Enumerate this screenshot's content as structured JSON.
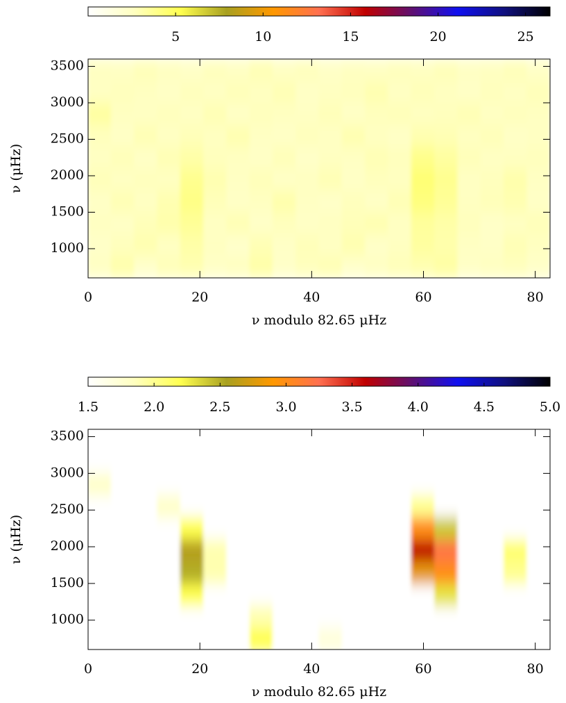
{
  "chart_data": [
    {
      "type": "heatmap",
      "xlabel": "ν modulo 82.65 μHz",
      "ylabel": "ν (μHz)",
      "xlim": [
        0,
        82.65
      ],
      "ylim": [
        600,
        3600
      ],
      "xticks": [
        0,
        20,
        40,
        60,
        80
      ],
      "yticks": [
        1000,
        1500,
        2000,
        2500,
        3000,
        3500
      ],
      "clim": [
        0,
        26.4
      ],
      "cticks": [
        5,
        10,
        15,
        20,
        25
      ],
      "colormap": [
        "#ffffff",
        "#ffffc0",
        "#ffff50",
        "#a8a020",
        "#ff9800",
        "#ff7050",
        "#c00000",
        "#601070",
        "#1010f0",
        "#101080",
        "#000000"
      ],
      "x": [
        2.07,
        6.2,
        10.33,
        14.46,
        18.6,
        22.73,
        26.86,
        31.0,
        35.13,
        39.26,
        43.39,
        47.53,
        51.66,
        55.79,
        59.92,
        64.06,
        68.19,
        72.32,
        76.45,
        80.59
      ],
      "y": [
        750,
        1050,
        1350,
        1650,
        1950,
        2250,
        2550,
        2850,
        3150,
        3450
      ],
      "values": [
        [
          2.5,
          3.1,
          2.2,
          2.8,
          3.0,
          2.4,
          2.6,
          3.2,
          2.3,
          2.7,
          2.9,
          2.2,
          2.5,
          2.8,
          3.0,
          3.3,
          2.4,
          2.6,
          2.7,
          2.3
        ],
        [
          2.3,
          2.7,
          3.0,
          2.5,
          3.2,
          2.6,
          2.2,
          2.9,
          2.4,
          2.8,
          2.5,
          3.0,
          2.3,
          2.6,
          3.4,
          3.1,
          2.5,
          2.4,
          2.9,
          2.6
        ],
        [
          2.6,
          2.4,
          2.8,
          3.1,
          3.6,
          2.5,
          2.9,
          2.3,
          2.7,
          2.4,
          2.6,
          2.8,
          3.0,
          2.5,
          3.5,
          3.2,
          2.7,
          2.3,
          2.5,
          2.8
        ],
        [
          2.4,
          2.9,
          2.5,
          3.0,
          4.0,
          2.8,
          2.4,
          2.6,
          3.1,
          2.5,
          2.3,
          2.7,
          2.4,
          2.9,
          4.2,
          3.6,
          2.6,
          2.8,
          3.0,
          2.4
        ],
        [
          2.8,
          2.5,
          2.7,
          2.6,
          3.8,
          3.0,
          2.5,
          2.8,
          2.4,
          2.6,
          2.9,
          2.4,
          2.7,
          2.6,
          4.4,
          3.8,
          2.5,
          2.7,
          3.1,
          2.5
        ],
        [
          2.5,
          2.8,
          2.4,
          2.9,
          3.2,
          2.7,
          2.6,
          2.4,
          2.8,
          2.3,
          2.6,
          2.5,
          2.9,
          2.7,
          3.9,
          3.4,
          2.8,
          2.5,
          2.6,
          2.7
        ],
        [
          2.7,
          2.4,
          2.9,
          2.5,
          2.8,
          2.6,
          3.0,
          2.5,
          2.4,
          2.7,
          2.5,
          3.0,
          2.6,
          2.4,
          3.0,
          2.9,
          2.6,
          2.8,
          2.4,
          2.5
        ],
        [
          3.4,
          2.6,
          2.5,
          2.7,
          2.5,
          2.9,
          2.4,
          2.7,
          2.6,
          2.5,
          2.8,
          2.4,
          2.7,
          2.8,
          2.6,
          2.7,
          2.9,
          2.5,
          2.7,
          2.6
        ],
        [
          2.5,
          2.7,
          2.6,
          2.4,
          2.7,
          2.5,
          2.8,
          2.6,
          2.9,
          2.4,
          2.6,
          2.7,
          3.0,
          2.5,
          2.8,
          2.6,
          2.4,
          2.7,
          2.5,
          2.8
        ],
        [
          2.6,
          2.5,
          2.8,
          2.6,
          2.4,
          2.7,
          2.5,
          2.9,
          2.5,
          2.7,
          2.4,
          2.6,
          2.5,
          2.7,
          2.6,
          2.8,
          2.5,
          2.6,
          2.8,
          2.4
        ]
      ]
    },
    {
      "type": "heatmap",
      "xlabel": "ν modulo 82.65 μHz",
      "ylabel": "ν (μHz)",
      "xlim": [
        0,
        82.65
      ],
      "ylim": [
        600,
        3600
      ],
      "xticks": [
        0,
        20,
        40,
        60,
        80
      ],
      "yticks": [
        1000,
        1500,
        2000,
        2500,
        3000,
        3500
      ],
      "clim": [
        1.5,
        5.0
      ],
      "cticks": [
        1.5,
        {
          "value": 2.0,
          "label": "2.0"
        },
        2.5,
        {
          "value": 3.0,
          "label": "3.0"
        },
        3.5,
        {
          "value": 4.0,
          "label": "4.0"
        },
        4.5,
        {
          "value": 5.0,
          "label": "5.0"
        }
      ],
      "colormap": [
        "#ffffff",
        "#ffffc0",
        "#ffff50",
        "#a8a020",
        "#ff9800",
        "#ff7050",
        "#c00000",
        "#601070",
        "#1010f0",
        "#101080",
        "#000000"
      ],
      "x": [
        2.07,
        6.2,
        10.33,
        14.46,
        18.6,
        22.73,
        26.86,
        31.0,
        35.13,
        39.26,
        43.39,
        47.53,
        51.66,
        55.79,
        59.92,
        64.06,
        68.19,
        72.32,
        76.45,
        80.59
      ],
      "y": [
        750,
        1050,
        1350,
        1650,
        1950,
        2250,
        2550,
        2850,
        3150,
        3450
      ],
      "values": [
        [
          1.5,
          1.5,
          1.5,
          1.5,
          1.5,
          1.5,
          1.5,
          2.2,
          1.5,
          1.5,
          1.7,
          1.5,
          1.5,
          1.5,
          1.5,
          1.5,
          1.5,
          1.5,
          1.5,
          1.5
        ],
        [
          1.5,
          1.5,
          1.5,
          1.5,
          1.5,
          1.5,
          1.5,
          1.9,
          1.5,
          1.5,
          1.5,
          1.5,
          1.5,
          1.5,
          1.5,
          1.5,
          1.5,
          1.5,
          1.5,
          1.5
        ],
        [
          1.5,
          1.5,
          1.5,
          1.5,
          2.2,
          1.5,
          1.5,
          1.5,
          1.5,
          1.5,
          1.5,
          1.5,
          1.5,
          1.5,
          1.5,
          2.3,
          1.5,
          1.5,
          1.5,
          1.5
        ],
        [
          1.5,
          1.5,
          1.5,
          1.5,
          2.5,
          1.9,
          1.5,
          1.5,
          1.5,
          1.5,
          1.5,
          1.5,
          1.5,
          1.5,
          2.8,
          3.0,
          1.5,
          1.5,
          2.0,
          1.5
        ],
        [
          1.5,
          1.5,
          1.5,
          1.5,
          2.6,
          1.9,
          1.5,
          1.5,
          1.5,
          1.5,
          1.5,
          1.5,
          1.5,
          1.5,
          3.6,
          3.2,
          1.5,
          1.5,
          2.1,
          1.5
        ],
        [
          1.5,
          1.5,
          1.5,
          1.5,
          2.2,
          1.5,
          1.5,
          1.5,
          1.5,
          1.5,
          1.5,
          1.5,
          1.5,
          1.5,
          3.0,
          2.4,
          1.5,
          1.5,
          1.5,
          1.5
        ],
        [
          1.5,
          1.5,
          1.5,
          1.8,
          1.5,
          1.5,
          1.5,
          1.5,
          1.5,
          1.5,
          1.5,
          1.5,
          1.5,
          1.5,
          2.0,
          1.5,
          1.5,
          1.5,
          1.5,
          1.5
        ],
        [
          1.8,
          1.5,
          1.5,
          1.5,
          1.5,
          1.5,
          1.5,
          1.5,
          1.5,
          1.5,
          1.5,
          1.5,
          1.5,
          1.5,
          1.5,
          1.5,
          1.5,
          1.5,
          1.5,
          1.5
        ],
        [
          1.5,
          1.5,
          1.5,
          1.5,
          1.5,
          1.5,
          1.5,
          1.5,
          1.5,
          1.5,
          1.5,
          1.5,
          1.5,
          1.5,
          1.5,
          1.5,
          1.5,
          1.5,
          1.5,
          1.5
        ],
        [
          1.5,
          1.5,
          1.5,
          1.5,
          1.5,
          1.5,
          1.5,
          1.5,
          1.5,
          1.5,
          1.5,
          1.5,
          1.5,
          1.5,
          1.5,
          1.5,
          1.5,
          1.5,
          1.5,
          1.5
        ]
      ]
    }
  ]
}
